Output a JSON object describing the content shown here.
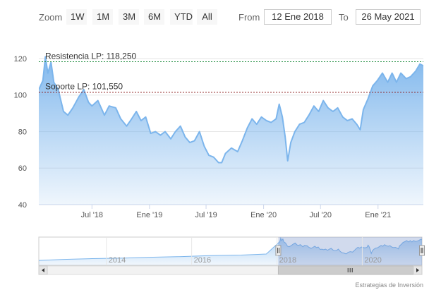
{
  "toolbar": {
    "zoom_label": "Zoom",
    "zoom_buttons": [
      "1W",
      "1M",
      "3M",
      "6M",
      "YTD",
      "All"
    ],
    "from_label": "From",
    "from_value": "12 Ene 2018",
    "to_label": "To",
    "to_value": "26 May 2021"
  },
  "credits": "Estrategias de Inversión",
  "colors": {
    "series_line": "#7cb5ec",
    "resistance_line": "#1b8a3a",
    "support_line": "#8b1a1a"
  },
  "chart_data": {
    "type": "area",
    "x_range": [
      "2018-01-12",
      "2021-05-26"
    ],
    "ylim": [
      40,
      125
    ],
    "y_ticks": [
      40,
      60,
      80,
      100,
      120
    ],
    "x_tick_labels": [
      {
        "label": "Jul '18",
        "date": "2018-07-01"
      },
      {
        "label": "Ene '19",
        "date": "2019-01-01"
      },
      {
        "label": "Jul '19",
        "date": "2019-07-01"
      },
      {
        "label": "Ene '20",
        "date": "2020-01-01"
      },
      {
        "label": "Jul '20",
        "date": "2020-07-01"
      },
      {
        "label": "Ene '21",
        "date": "2021-01-01"
      }
    ],
    "grid": true,
    "plot_lines": [
      {
        "label": "Resistencia LP: 118,250",
        "value": 118.25,
        "style": "dashed",
        "color": "#1b8a3a"
      },
      {
        "label": "Soporte LP: 101,550",
        "value": 101.55,
        "style": "dashed",
        "color": "#8b1a1a"
      }
    ],
    "series": [
      {
        "values": [
          [
            "2018-01-12",
            103
          ],
          [
            "2018-01-25",
            108
          ],
          [
            "2018-02-02",
            121
          ],
          [
            "2018-02-10",
            112
          ],
          [
            "2018-02-20",
            118
          ],
          [
            "2018-03-01",
            107
          ],
          [
            "2018-03-15",
            103
          ],
          [
            "2018-04-01",
            91
          ],
          [
            "2018-04-15",
            89
          ],
          [
            "2018-05-01",
            93
          ],
          [
            "2018-05-20",
            99
          ],
          [
            "2018-06-05",
            103
          ],
          [
            "2018-06-20",
            96
          ],
          [
            "2018-07-01",
            94
          ],
          [
            "2018-07-20",
            97
          ],
          [
            "2018-08-10",
            89
          ],
          [
            "2018-08-25",
            94
          ],
          [
            "2018-09-15",
            93
          ],
          [
            "2018-10-01",
            87
          ],
          [
            "2018-10-20",
            83
          ],
          [
            "2018-11-05",
            87
          ],
          [
            "2018-11-20",
            91
          ],
          [
            "2018-12-05",
            86
          ],
          [
            "2018-12-20",
            88
          ],
          [
            "2019-01-05",
            79
          ],
          [
            "2019-01-20",
            80
          ],
          [
            "2019-02-05",
            78
          ],
          [
            "2019-02-20",
            80
          ],
          [
            "2019-03-10",
            76
          ],
          [
            "2019-03-25",
            80
          ],
          [
            "2019-04-10",
            83
          ],
          [
            "2019-04-25",
            77
          ],
          [
            "2019-05-10",
            74
          ],
          [
            "2019-05-25",
            75
          ],
          [
            "2019-06-10",
            80
          ],
          [
            "2019-06-25",
            72
          ],
          [
            "2019-07-10",
            67
          ],
          [
            "2019-07-25",
            66
          ],
          [
            "2019-08-10",
            63
          ],
          [
            "2019-08-20",
            63
          ],
          [
            "2019-09-01",
            68
          ],
          [
            "2019-09-20",
            71
          ],
          [
            "2019-10-10",
            69
          ],
          [
            "2019-10-25",
            75
          ],
          [
            "2019-11-10",
            82
          ],
          [
            "2019-11-25",
            87
          ],
          [
            "2019-12-10",
            84
          ],
          [
            "2019-12-25",
            88
          ],
          [
            "2020-01-10",
            86
          ],
          [
            "2020-01-25",
            85
          ],
          [
            "2020-02-10",
            87
          ],
          [
            "2020-02-20",
            95
          ],
          [
            "2020-03-01",
            88
          ],
          [
            "2020-03-10",
            77
          ],
          [
            "2020-03-18",
            64
          ],
          [
            "2020-03-28",
            74
          ],
          [
            "2020-04-10",
            80
          ],
          [
            "2020-04-25",
            84
          ],
          [
            "2020-05-10",
            85
          ],
          [
            "2020-05-25",
            89
          ],
          [
            "2020-06-10",
            94
          ],
          [
            "2020-06-25",
            91
          ],
          [
            "2020-07-10",
            97
          ],
          [
            "2020-07-25",
            93
          ],
          [
            "2020-08-10",
            91
          ],
          [
            "2020-08-25",
            93
          ],
          [
            "2020-09-10",
            88
          ],
          [
            "2020-09-25",
            86
          ],
          [
            "2020-10-10",
            87
          ],
          [
            "2020-10-25",
            84
          ],
          [
            "2020-11-05",
            81
          ],
          [
            "2020-11-15",
            92
          ],
          [
            "2020-11-30",
            98
          ],
          [
            "2020-12-15",
            105
          ],
          [
            "2020-12-30",
            108
          ],
          [
            "2021-01-15",
            112
          ],
          [
            "2021-02-01",
            107
          ],
          [
            "2021-02-15",
            112
          ],
          [
            "2021-03-01",
            107
          ],
          [
            "2021-03-15",
            112
          ],
          [
            "2021-04-01",
            109
          ],
          [
            "2021-04-15",
            110
          ],
          [
            "2021-05-01",
            113
          ],
          [
            "2021-05-15",
            117
          ],
          [
            "2021-05-26",
            116
          ]
        ]
      }
    ],
    "navigator": {
      "x_labels": [
        "2014",
        "2016",
        "2018",
        "2020"
      ],
      "x_range": [
        "2012-06-01",
        "2021-05-26"
      ],
      "selected_range": [
        "2018-01-12",
        "2021-05-26"
      ]
    }
  }
}
